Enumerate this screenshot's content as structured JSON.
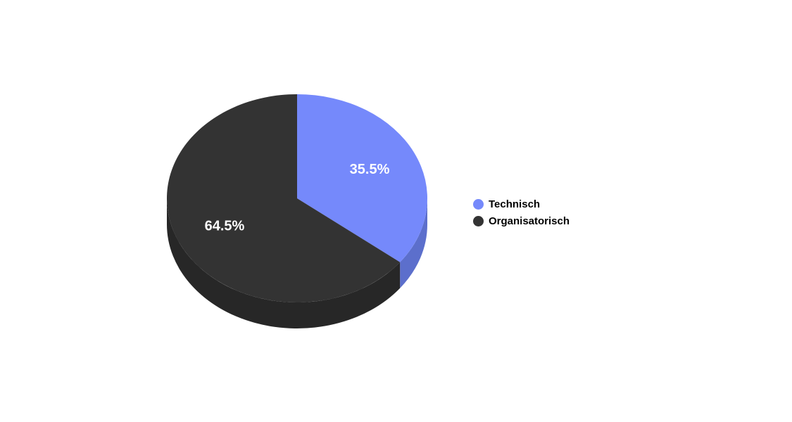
{
  "chart_data": {
    "type": "pie",
    "style": "3d",
    "title": "",
    "slices": [
      {
        "label": "Technisch",
        "value": 35.5,
        "display": "35.5%",
        "color": "#7589fb",
        "side_color": "#5c6fcc"
      },
      {
        "label": "Organisatorisch",
        "value": 64.5,
        "display": "64.5%",
        "color": "#333333",
        "side_color": "#272727"
      }
    ],
    "legend_position": "right"
  }
}
